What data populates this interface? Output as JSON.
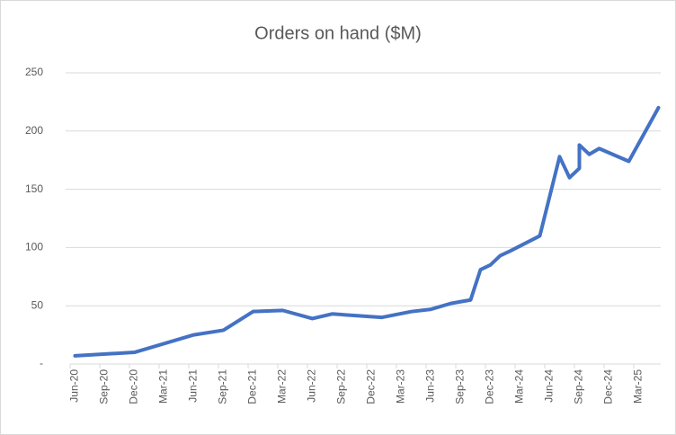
{
  "chart_data": {
    "type": "line",
    "title": "Orders on hand ($M)",
    "x": [
      "2020-06",
      "2020-12",
      "2021-06",
      "2021-09",
      "2021-12",
      "2022-03",
      "2022-06",
      "2022-08",
      "2023-01",
      "2023-04",
      "2023-06",
      "2023-08",
      "2023-10",
      "2023-11",
      "2023-12",
      "2024-01",
      "2024-02",
      "2024-05",
      "2024-07",
      "2024-08",
      "2024-09",
      "2024-09",
      "2024-10",
      "2024-11",
      "2025-02",
      "2025-05"
    ],
    "series": [
      {
        "name": "Orders on hand",
        "color": "#4472c4",
        "values": [
          7,
          10,
          25,
          29,
          45,
          46,
          39,
          43,
          40,
          45,
          47,
          52,
          55,
          81,
          85,
          93,
          97,
          110,
          178,
          160,
          168,
          188,
          180,
          185,
          174,
          220
        ]
      }
    ],
    "xlim": [
      "2020-06",
      "2025-05"
    ],
    "xticks": [
      {
        "value": "2020-06",
        "label": "Jun-20"
      },
      {
        "value": "2020-09",
        "label": "Sep-20"
      },
      {
        "value": "2020-12",
        "label": "Dec-20"
      },
      {
        "value": "2021-03",
        "label": "Mar-21"
      },
      {
        "value": "2021-06",
        "label": "Jun-21"
      },
      {
        "value": "2021-09",
        "label": "Sep-21"
      },
      {
        "value": "2021-12",
        "label": "Dec-21"
      },
      {
        "value": "2022-03",
        "label": "Mar-22"
      },
      {
        "value": "2022-06",
        "label": "Jun-22"
      },
      {
        "value": "2022-09",
        "label": "Sep-22"
      },
      {
        "value": "2022-12",
        "label": "Dec-22"
      },
      {
        "value": "2023-03",
        "label": "Mar-23"
      },
      {
        "value": "2023-06",
        "label": "Jun-23"
      },
      {
        "value": "2023-09",
        "label": "Sep-23"
      },
      {
        "value": "2023-12",
        "label": "Dec-23"
      },
      {
        "value": "2024-03",
        "label": "Mar-24"
      },
      {
        "value": "2024-06",
        "label": "Jun-24"
      },
      {
        "value": "2024-09",
        "label": "Sep-24"
      },
      {
        "value": "2024-12",
        "label": "Dec-24"
      },
      {
        "value": "2025-03",
        "label": "Mar-25"
      }
    ],
    "ylim": [
      0,
      250
    ],
    "yticks": [
      {
        "value": 0,
        "label": "-"
      },
      50,
      100,
      150,
      200,
      250
    ],
    "grid": true
  }
}
